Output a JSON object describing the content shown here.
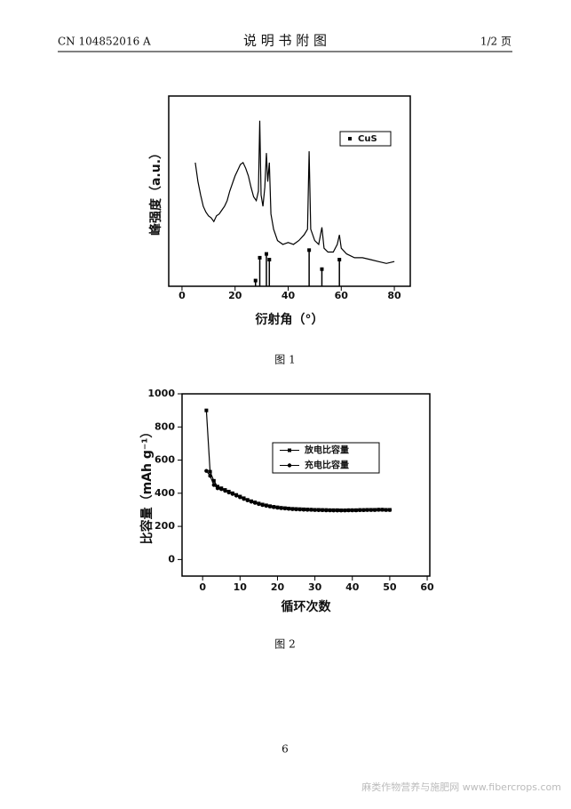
{
  "header": {
    "left": "CN 104852016 A",
    "title": "说 明 书 附 图",
    "right": "1/2 页"
  },
  "captions": [
    "图 1",
    "图 2"
  ],
  "page_number": "6",
  "watermark": "麻类作物营养与施肥网 www.fibercrops.com",
  "chart_data": [
    {
      "type": "line",
      "x_label": "衍射角（°）",
      "y_label": "峰强度（a.u.）",
      "xlim": [
        -5,
        86
      ],
      "ylim": [
        0,
        100
      ],
      "xticks": [
        0,
        20,
        40,
        60,
        80
      ],
      "series": [
        {
          "color": "#000000",
          "style": "line",
          "x": [
            5,
            6,
            7,
            8,
            9,
            10,
            11,
            12,
            13,
            14,
            15,
            16,
            17,
            18,
            19,
            20,
            21,
            22,
            23,
            24,
            25,
            26,
            27,
            28,
            28.8,
            29.3,
            29.8,
            30.5,
            31.2,
            31.8,
            32.3,
            32.9,
            33.5,
            34.5,
            36,
            38,
            40,
            42,
            44,
            46,
            47.3,
            47.9,
            48.5,
            50,
            51.5,
            52.7,
            53.5,
            55,
            57,
            58.5,
            59.3,
            60,
            62,
            65,
            68,
            71,
            74,
            77,
            80
          ],
          "values": [
            65,
            55,
            48,
            42,
            39,
            37,
            36,
            34,
            37,
            38,
            40,
            42,
            45,
            50,
            54,
            58,
            61,
            64,
            65,
            62,
            58,
            52,
            47,
            45,
            50,
            87,
            48,
            42,
            52,
            70,
            55,
            65,
            38,
            30,
            24,
            22,
            23,
            22,
            24,
            27,
            30,
            71,
            30,
            24,
            22,
            31,
            20,
            18,
            18,
            22,
            27,
            20,
            17,
            15,
            15,
            14,
            13,
            12,
            13
          ]
        },
        {
          "name": "CuS",
          "color": "#000000",
          "style": "stem",
          "marker": "square",
          "x": [
            27.7,
            29.3,
            31.8,
            32.9,
            47.9,
            52.7,
            59.3
          ],
          "values": [
            3,
            15,
            17,
            14,
            19,
            9,
            14
          ]
        }
      ]
    },
    {
      "type": "line",
      "x_label": "循环次数",
      "y_label": "比容量（mAh g⁻¹）",
      "xlim": [
        -5.5,
        60.7
      ],
      "ylim": [
        -100,
        1000
      ],
      "xticks": [
        0,
        10,
        20,
        30,
        40,
        50,
        60
      ],
      "yticks": [
        0,
        200,
        400,
        600,
        800,
        1000
      ],
      "series": [
        {
          "name": "放电比容量",
          "color": "#000000",
          "style": "line",
          "marker": "square",
          "x": [
            1,
            2,
            3,
            4,
            5,
            6,
            7,
            8,
            9,
            10,
            11,
            12,
            13,
            14,
            15,
            16,
            17,
            18,
            19,
            20,
            21,
            22,
            23,
            24,
            25,
            26,
            27,
            28,
            29,
            30,
            31,
            32,
            33,
            34,
            35,
            36,
            37,
            38,
            39,
            40,
            41,
            42,
            43,
            44,
            45,
            46,
            47,
            48,
            49,
            50
          ],
          "values": [
            900,
            530,
            475,
            440,
            430,
            420,
            410,
            400,
            390,
            380,
            370,
            360,
            352,
            345,
            338,
            332,
            327,
            322,
            318,
            315,
            312,
            310,
            308,
            306,
            305,
            304,
            303,
            302,
            301,
            300,
            300,
            299,
            299,
            298,
            298,
            298,
            297,
            297,
            298,
            298,
            298,
            299,
            299,
            300,
            300,
            300,
            301,
            301,
            300,
            300
          ]
        },
        {
          "name": "充电比容量",
          "color": "#000000",
          "style": "line",
          "marker": "circle",
          "x": [
            1,
            2,
            3,
            4,
            5,
            6,
            7,
            8,
            9,
            10,
            11,
            12,
            13,
            14,
            15,
            16,
            17,
            18,
            19,
            20,
            21,
            22,
            23,
            24,
            25,
            26,
            27,
            28,
            29,
            30,
            31,
            32,
            33,
            34,
            35,
            36,
            37,
            38,
            39,
            40,
            41,
            42,
            43,
            44,
            45,
            46,
            47,
            48,
            49,
            50
          ],
          "values": [
            535,
            505,
            450,
            430,
            425,
            415,
            405,
            396,
            386,
            376,
            366,
            357,
            349,
            342,
            335,
            329,
            324,
            320,
            316,
            313,
            310,
            308,
            306,
            304,
            303,
            302,
            301,
            300,
            300,
            299,
            298,
            298,
            297,
            297,
            296,
            296,
            296,
            296,
            297,
            297,
            297,
            298,
            298,
            299,
            299,
            299,
            300,
            300,
            299,
            299
          ]
        }
      ]
    }
  ]
}
